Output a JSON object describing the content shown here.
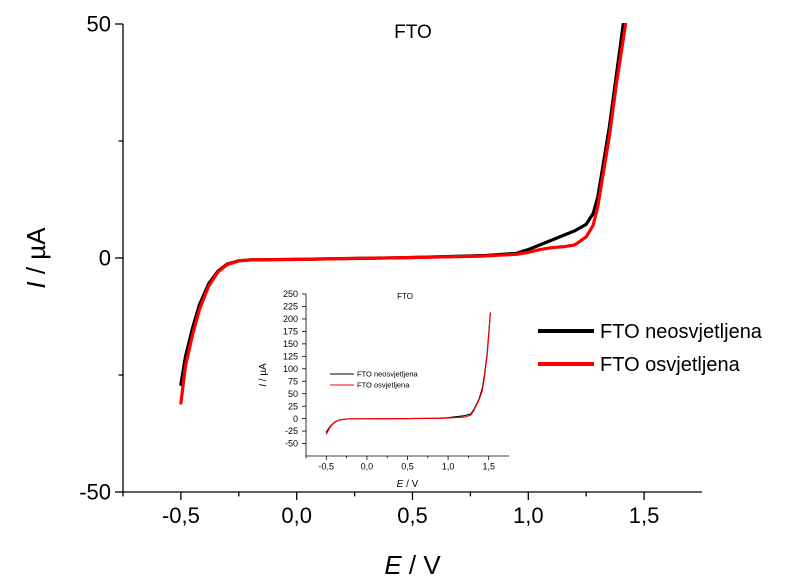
{
  "chart_data": [
    {
      "type": "line",
      "title": "FTO",
      "xlabel_var": "E",
      "xlabel_unit": " / V",
      "ylabel_var": "I",
      "ylabel_unit": " / µA",
      "xlim": [
        -0.75,
        1.75
      ],
      "ylim": [
        -50,
        50
      ],
      "xticks": [
        -0.5,
        0.0,
        0.5,
        1.0,
        1.5
      ],
      "xtick_labels": [
        "-0,5",
        "0,0",
        "0,5",
        "1,0",
        "1,5"
      ],
      "yticks": [
        -50,
        0,
        50
      ],
      "ytick_labels": [
        "-50",
        "0",
        "50"
      ],
      "yminor": [
        -25,
        25
      ],
      "grid": false,
      "legend_position": "right",
      "series": [
        {
          "name": "FTO neosvjetljena",
          "color": "#000000",
          "points": [
            [
              -0.5,
              -27
            ],
            [
              -0.48,
              -21
            ],
            [
              -0.45,
              -15
            ],
            [
              -0.42,
              -10
            ],
            [
              -0.38,
              -5.5
            ],
            [
              -0.34,
              -2.8
            ],
            [
              -0.3,
              -1.3
            ],
            [
              -0.25,
              -0.6
            ],
            [
              -0.2,
              -0.4
            ],
            [
              0.0,
              -0.3
            ],
            [
              0.5,
              0.1
            ],
            [
              0.8,
              0.5
            ],
            [
              0.95,
              1.0
            ],
            [
              1.0,
              1.8
            ],
            [
              1.05,
              2.8
            ],
            [
              1.1,
              3.8
            ],
            [
              1.15,
              4.8
            ],
            [
              1.2,
              5.8
            ],
            [
              1.25,
              7.2
            ],
            [
              1.28,
              9.5
            ],
            [
              1.3,
              13
            ],
            [
              1.32,
              19
            ],
            [
              1.35,
              28
            ],
            [
              1.38,
              39
            ],
            [
              1.41,
              50
            ]
          ]
        },
        {
          "name": "FTO osvjetljena",
          "color": "#ff0000",
          "points": [
            [
              -0.5,
              -31
            ],
            [
              -0.48,
              -23
            ],
            [
              -0.45,
              -16.5
            ],
            [
              -0.42,
              -11
            ],
            [
              -0.38,
              -6
            ],
            [
              -0.34,
              -3
            ],
            [
              -0.3,
              -1.4
            ],
            [
              -0.25,
              -0.6
            ],
            [
              -0.2,
              -0.4
            ],
            [
              0.0,
              -0.3
            ],
            [
              0.5,
              0.1
            ],
            [
              0.8,
              0.4
            ],
            [
              0.95,
              0.8
            ],
            [
              1.0,
              1.2
            ],
            [
              1.05,
              1.8
            ],
            [
              1.1,
              2.2
            ],
            [
              1.15,
              2.4
            ],
            [
              1.2,
              2.8
            ],
            [
              1.25,
              4.5
            ],
            [
              1.28,
              7
            ],
            [
              1.3,
              11
            ],
            [
              1.32,
              17
            ],
            [
              1.35,
              26
            ],
            [
              1.38,
              37
            ],
            [
              1.42,
              50
            ]
          ]
        }
      ]
    },
    {
      "type": "line",
      "title": "FTO",
      "xlabel_var": "E",
      "xlabel_unit": " / V",
      "ylabel_var": "I",
      "ylabel_unit": " / µA",
      "xlim": [
        -0.75,
        1.75
      ],
      "ylim": [
        -75,
        250
      ],
      "xticks": [
        -0.5,
        0.0,
        0.5,
        1.0,
        1.5
      ],
      "xtick_labels": [
        "-0,5",
        "0,0",
        "0,5",
        "1,0",
        "1,5"
      ],
      "yticks": [
        -50,
        -25,
        0,
        25,
        50,
        75,
        100,
        125,
        150,
        175,
        200,
        225,
        250
      ],
      "ytick_labels": [
        "-50",
        "-25",
        "0",
        "25",
        "50",
        "75",
        "100",
        "125",
        "150",
        "175",
        "200",
        "225",
        "250"
      ],
      "grid": false,
      "legend_position": "upper-left",
      "series": [
        {
          "name": "FTO neosvjetljena",
          "color": "#000000",
          "points": [
            [
              -0.5,
              -27
            ],
            [
              -0.45,
              -15
            ],
            [
              -0.4,
              -7
            ],
            [
              -0.34,
              -2.8
            ],
            [
              -0.25,
              -0.6
            ],
            [
              0.0,
              -0.3
            ],
            [
              0.5,
              0.1
            ],
            [
              0.9,
              0.8
            ],
            [
              1.0,
              1.8
            ],
            [
              1.1,
              3.8
            ],
            [
              1.2,
              5.8
            ],
            [
              1.28,
              9.5
            ],
            [
              1.32,
              19
            ],
            [
              1.38,
              39
            ],
            [
              1.42,
              60
            ],
            [
              1.45,
              90
            ],
            [
              1.48,
              130
            ],
            [
              1.5,
              170
            ],
            [
              1.52,
              212
            ]
          ]
        },
        {
          "name": "FTO osvjetljena",
          "color": "#ff0000",
          "points": [
            [
              -0.5,
              -31
            ],
            [
              -0.45,
              -16.5
            ],
            [
              -0.4,
              -7.5
            ],
            [
              -0.34,
              -3
            ],
            [
              -0.25,
              -0.6
            ],
            [
              0.0,
              -0.3
            ],
            [
              0.5,
              0.1
            ],
            [
              0.9,
              0.6
            ],
            [
              1.0,
              1.2
            ],
            [
              1.1,
              2.2
            ],
            [
              1.2,
              2.8
            ],
            [
              1.28,
              7
            ],
            [
              1.32,
              17
            ],
            [
              1.38,
              37
            ],
            [
              1.42,
              55
            ],
            [
              1.45,
              85
            ],
            [
              1.48,
              125
            ],
            [
              1.5,
              165
            ],
            [
              1.52,
              210
            ]
          ]
        }
      ]
    }
  ]
}
